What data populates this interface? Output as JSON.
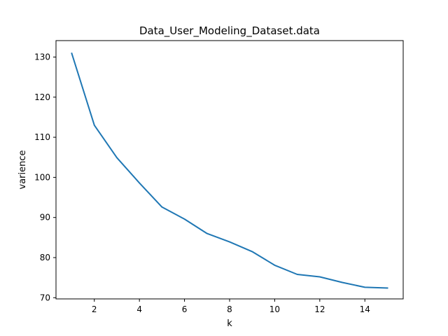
{
  "chart_data": {
    "type": "line",
    "title": "Data_User_Modeling_Dataset.data",
    "xlabel": "k",
    "ylabel": "varience",
    "xlim": [
      0.3,
      15.7
    ],
    "ylim": [
      69.7,
      134.1
    ],
    "xticks": [
      2,
      4,
      6,
      8,
      10,
      12,
      14
    ],
    "yticks": [
      70,
      80,
      90,
      100,
      110,
      120,
      130
    ],
    "grid": false,
    "series": [
      {
        "color": "#1f77b4",
        "x": [
          1,
          2,
          3,
          4,
          5,
          6,
          7,
          8,
          9,
          10,
          11,
          12,
          13,
          14,
          15
        ],
        "y": [
          130.9,
          113.0,
          104.9,
          98.6,
          92.6,
          89.6,
          86.0,
          83.9,
          81.5,
          78.1,
          75.8,
          75.2,
          73.8,
          72.6,
          72.4
        ]
      }
    ]
  }
}
